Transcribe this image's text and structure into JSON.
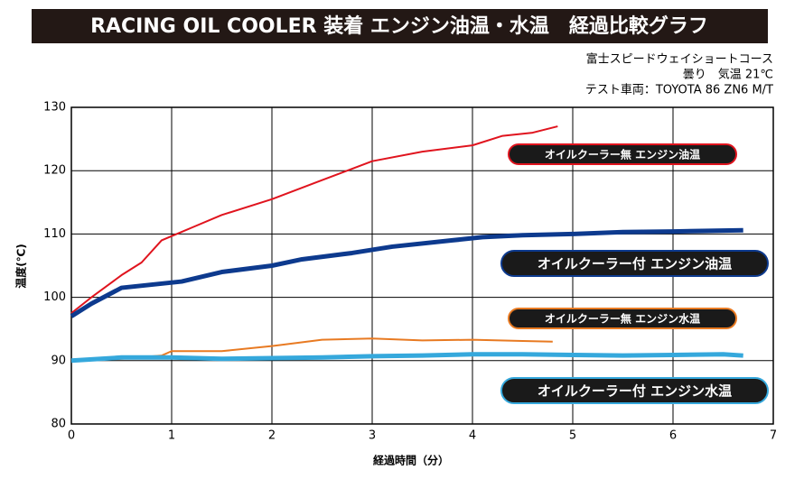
{
  "chart_data": {
    "type": "line",
    "title": "RACING OIL COOLER 装着 エンジン油温・水温　経過比較グラフ",
    "notes": [
      "富士スピードウェイショートコース",
      "曇り　気温 21℃",
      "テスト車両：TOYOTA 86 ZN6 M/T"
    ],
    "x_label": "経過時間（分）",
    "y_label": "温度(℃)",
    "xlim": [
      0,
      7
    ],
    "xticks": [
      0,
      1,
      2,
      3,
      4,
      5,
      6,
      7
    ],
    "ylim": [
      80,
      130
    ],
    "yticks": [
      80,
      90,
      100,
      110,
      120,
      130
    ],
    "grid": true,
    "series": [
      {
        "name": "オイルクーラー無 エンジン油温",
        "color": "#e0141e",
        "x": [
          0,
          0.2,
          0.5,
          0.7,
          0.9,
          1.2,
          1.5,
          2,
          2.5,
          3,
          3.5,
          4,
          4.3,
          4.6,
          4.85
        ],
        "values": [
          97.5,
          100,
          103.5,
          105.5,
          109,
          111,
          113,
          115.5,
          118.5,
          121.5,
          123,
          124,
          125.5,
          126,
          127
        ]
      },
      {
        "name": "オイルクーラー付 エンジン油温",
        "color": "#0d3a8e",
        "x": [
          0,
          0.2,
          0.5,
          0.8,
          1.1,
          1.5,
          2,
          2.3,
          2.8,
          3.2,
          3.8,
          4.1,
          4.5,
          5,
          5.5,
          6,
          6.7
        ],
        "values": [
          97,
          99,
          101.5,
          102,
          102.5,
          104,
          105,
          106,
          107,
          108,
          109,
          109.5,
          109.8,
          110,
          110.3,
          110.4,
          110.6
        ]
      },
      {
        "name": "オイルクーラー無 エンジン水温",
        "color": "#e87a22",
        "x": [
          0,
          0.5,
          0.9,
          1.0,
          1.5,
          2,
          2.5,
          3,
          3.5,
          4,
          4.5,
          4.8
        ],
        "values": [
          90,
          90.3,
          90.8,
          91.5,
          91.5,
          92.3,
          93.3,
          93.5,
          93.2,
          93.3,
          93.1,
          93
        ]
      },
      {
        "name": "オイルクーラー付 エンジン水温",
        "color": "#35a8dc",
        "x": [
          0,
          0.5,
          1,
          1.5,
          2,
          2.5,
          3,
          3.5,
          4,
          4.5,
          5,
          5.5,
          6,
          6.5,
          6.7
        ],
        "values": [
          90,
          90.5,
          90.5,
          90.3,
          90.4,
          90.5,
          90.7,
          90.8,
          91,
          91,
          90.9,
          90.8,
          90.9,
          91,
          90.8
        ]
      }
    ]
  }
}
